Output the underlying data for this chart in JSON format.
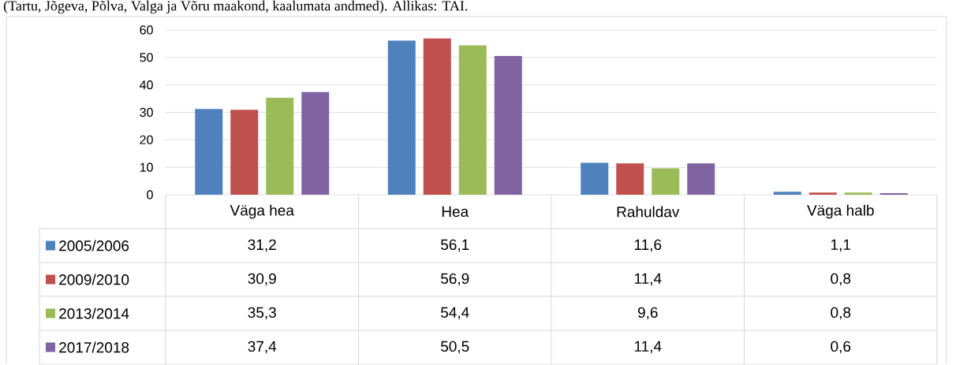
{
  "chart_data": {
    "type": "bar",
    "annotations": [
      "(Tartu, Jõgeva, Põlva, Valga ja Võru maakond, kaalumata andmed). Allikas: TAI."
    ],
    "categories": [
      "Väga hea",
      "Hea",
      "Rahuldav",
      "Väga halb"
    ],
    "series": [
      {
        "name": "2005/2006",
        "color": "#4f81bd",
        "values": [
          31.2,
          56.1,
          11.6,
          1.1
        ],
        "value_labels": [
          "31,2",
          "56,1",
          "11,6",
          "1,1"
        ]
      },
      {
        "name": "2009/2010",
        "color": "#c0504d",
        "values": [
          30.9,
          56.9,
          11.4,
          0.8
        ],
        "value_labels": [
          "30,9",
          "56,9",
          "11,4",
          "0,8"
        ]
      },
      {
        "name": "2013/2014",
        "color": "#9bbb59",
        "values": [
          35.3,
          54.4,
          9.6,
          0.8
        ],
        "value_labels": [
          "35,3",
          "54,4",
          "9,6",
          "0,8"
        ]
      },
      {
        "name": "2017/2018",
        "color": "#8064a2",
        "values": [
          37.4,
          50.5,
          11.4,
          0.6
        ],
        "value_labels": [
          "37,4",
          "50,5",
          "11,4",
          "0,6"
        ]
      }
    ],
    "ylim": [
      0,
      60
    ],
    "yticks": [
      0,
      10,
      20,
      30,
      40,
      50,
      60
    ],
    "grid": "y",
    "legend": "bottom"
  }
}
